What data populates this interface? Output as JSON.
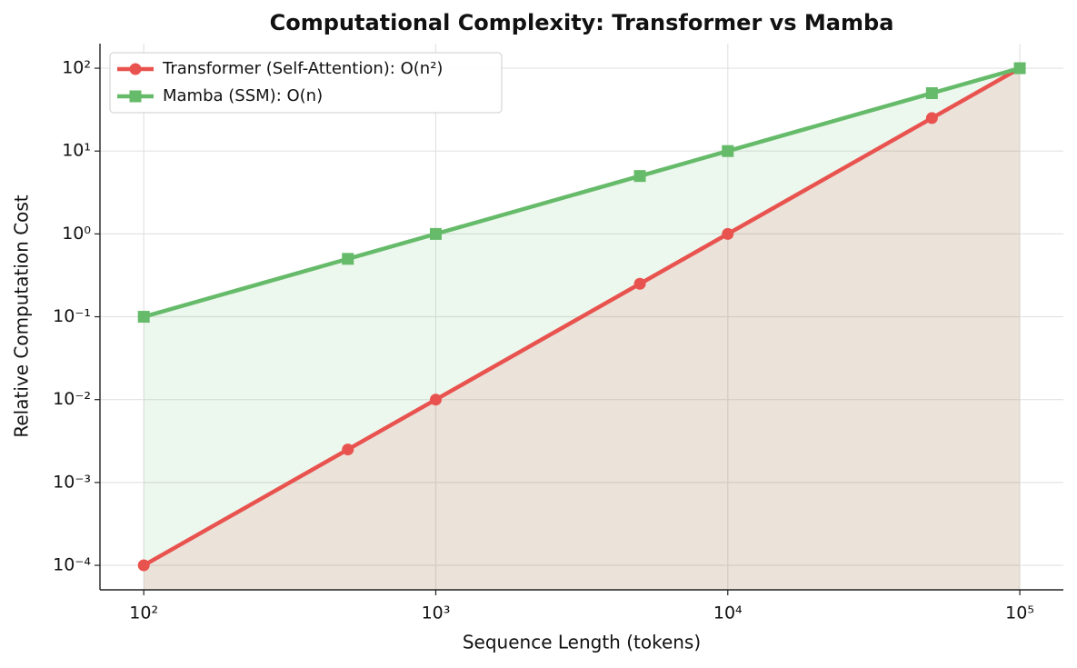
{
  "chart_data": {
    "type": "line",
    "title": "Computational Complexity: Transformer vs Mamba",
    "xlabel": "Sequence Length (tokens)",
    "ylabel": "Relative Computation Cost",
    "xscale": "log",
    "yscale": "log",
    "grid": true,
    "legend": "upper left",
    "x": [
      100,
      500,
      1000,
      5000,
      10000,
      50000,
      100000
    ],
    "series": [
      {
        "name": "Transformer (Self-Attention): O(n²)",
        "color": "#e9534f",
        "marker": "circle",
        "values": [
          0.0001,
          0.0025,
          0.01,
          0.25,
          1,
          25,
          100
        ]
      },
      {
        "name": "Mamba (SSM): O(n)",
        "color": "#66bb6a",
        "marker": "square",
        "values": [
          0.1,
          0.5,
          1,
          5,
          10,
          50,
          100
        ]
      }
    ],
    "xlim": [
      70.8,
      141000
    ],
    "ylim": [
      5.06e-05,
      198
    ],
    "xticks": [
      {
        "value": 100,
        "label": "10²"
      },
      {
        "value": 1000,
        "label": "10³"
      },
      {
        "value": 10000,
        "label": "10⁴"
      },
      {
        "value": 100000,
        "label": "10⁵"
      }
    ],
    "yticks": [
      {
        "value": 0.0001,
        "label": "10⁻⁴"
      },
      {
        "value": 0.001,
        "label": "10⁻³"
      },
      {
        "value": 0.01,
        "label": "10⁻²"
      },
      {
        "value": 0.1,
        "label": "10⁻¹"
      },
      {
        "value": 1,
        "label": "10⁰"
      },
      {
        "value": 10,
        "label": "10¹"
      },
      {
        "value": 100,
        "label": "10²"
      }
    ]
  }
}
